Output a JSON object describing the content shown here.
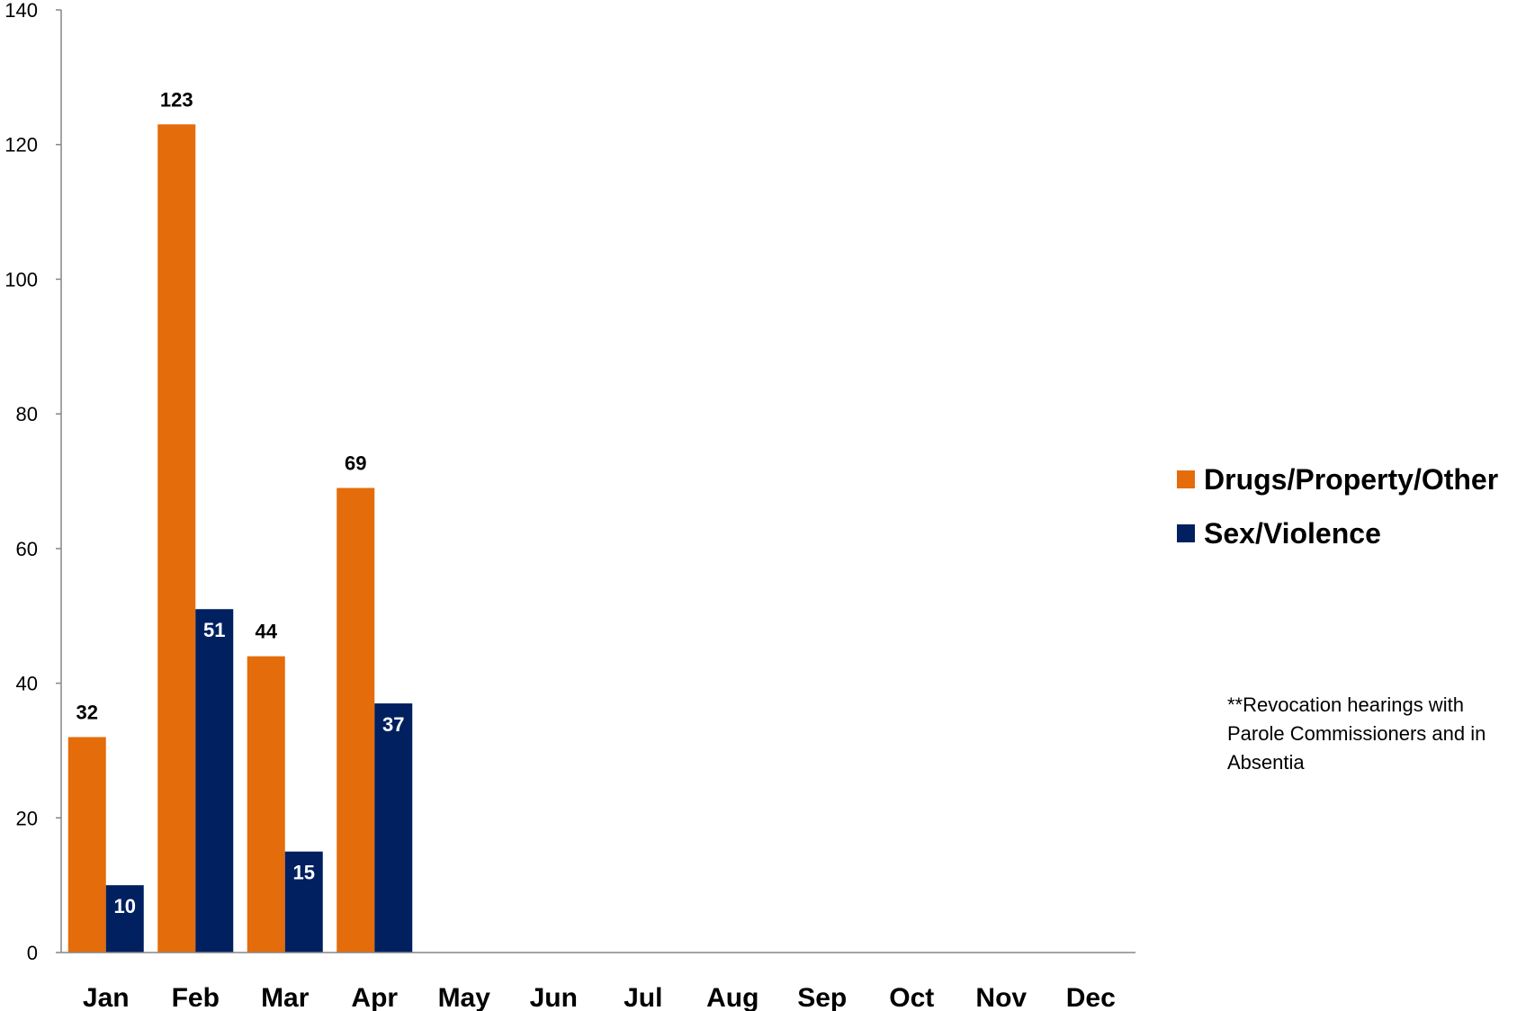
{
  "chart_data": {
    "type": "bar",
    "title": "",
    "xlabel": "",
    "ylabel": "",
    "ylim": [
      0,
      140
    ],
    "yticks": [
      0,
      20,
      40,
      60,
      80,
      100,
      120,
      140
    ],
    "grid": false,
    "legend_position": "right",
    "categories": [
      "Jan",
      "Feb",
      "Mar",
      "Apr",
      "May",
      "Jun",
      "Jul",
      "Aug",
      "Sep",
      "Oct",
      "Nov",
      "Dec"
    ],
    "series": [
      {
        "name": "Drugs/Property/Other",
        "color": "#E46C0A",
        "label_color": "#000000",
        "values": [
          32,
          123,
          44,
          69,
          null,
          null,
          null,
          null,
          null,
          null,
          null,
          null
        ]
      },
      {
        "name": "Sex/Violence",
        "color": "#002060",
        "label_color": "#FFFFFF",
        "values": [
          10,
          51,
          15,
          37,
          null,
          null,
          null,
          null,
          null,
          null,
          null,
          null
        ]
      }
    ],
    "annotation": "**Revocation hearings with Parole Commissioners and in Absentia"
  }
}
